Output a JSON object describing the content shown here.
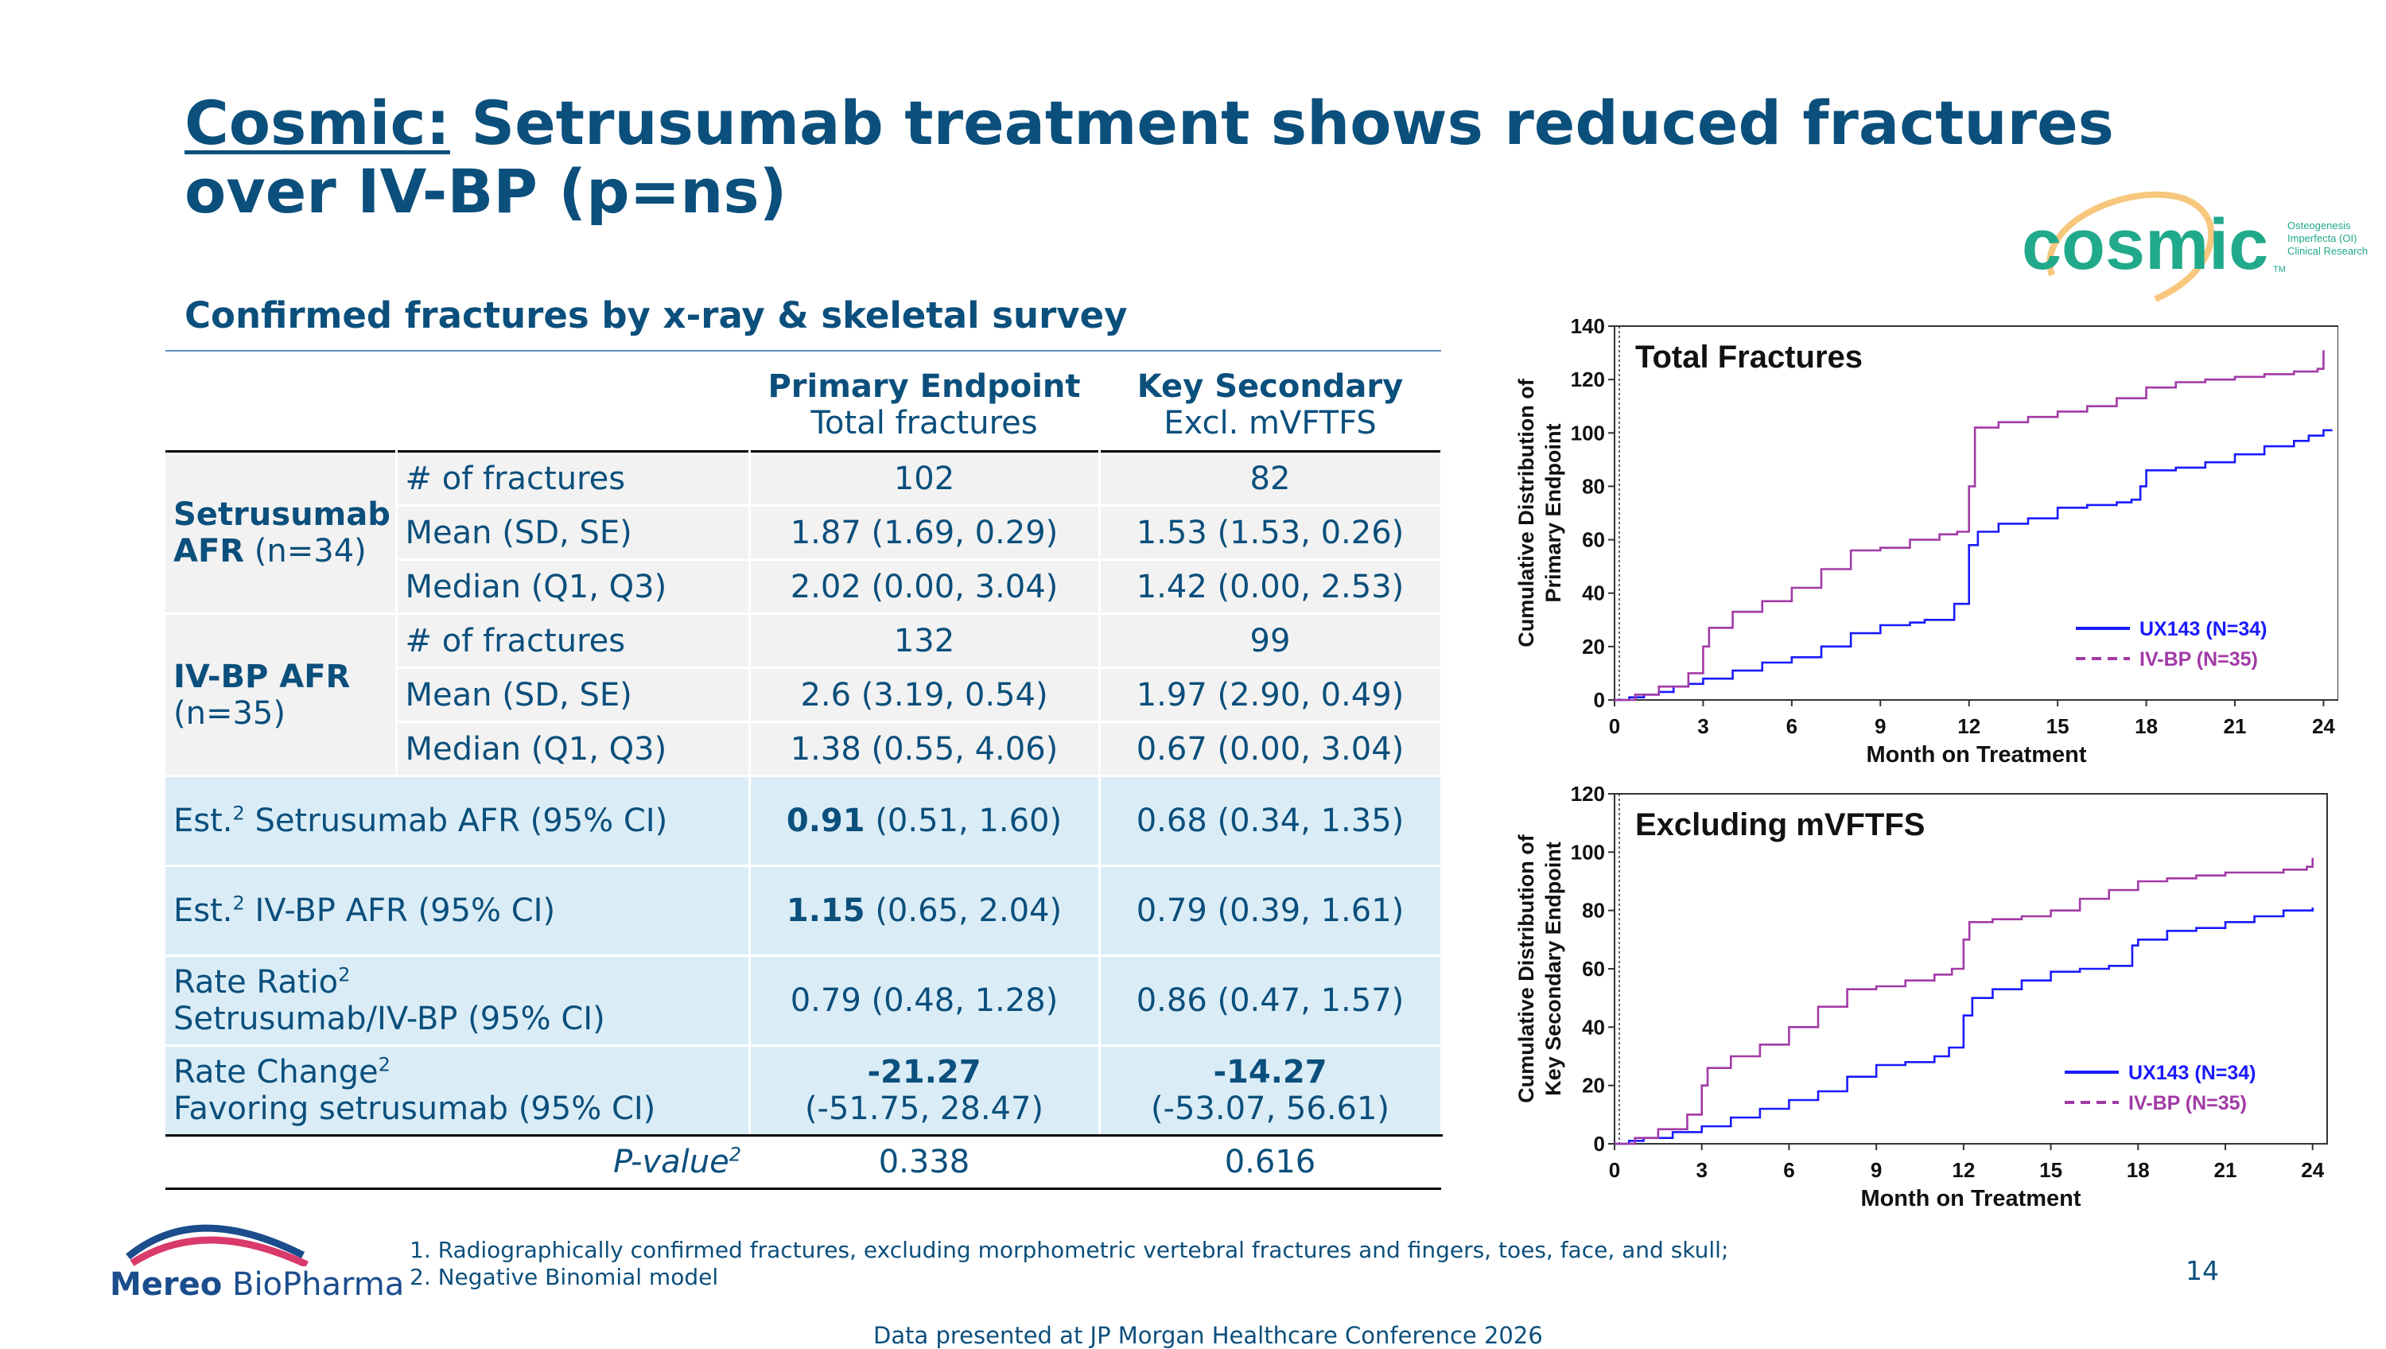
{
  "slide": {
    "title_link": "Cosmic:",
    "title_rest": "Setrusumab treatment shows reduced fractures over IV-BP (p=ns)",
    "subtitle": "Confirmed fractures by x-ray & skeletal survey",
    "page_number": "14",
    "credit": "Data presented at JP Morgan Healthcare Conference 2026",
    "footnote1": "1. Radiographically confirmed fractures, excluding morphometric vertebral fractures and fingers, toes, face, and skull;",
    "footnote2": "2. Negative Binomial model",
    "brand": {
      "primary": "#0b4f7c",
      "grey_row": "#f2f2f2",
      "blue_row": "#daedf7"
    }
  },
  "logos": {
    "mereo_bold": "Mereo",
    "mereo_rest": " BioPharma",
    "cosmic_word": "cosmic",
    "cosmic_tm": "TM",
    "cosmic_line1": "Osteogenesis",
    "cosmic_line2": "Imperfecta (OI)",
    "cosmic_line3": "Clinical Research"
  },
  "table": {
    "col1_title": "Primary Endpoint",
    "col1_sub": "Total fractures",
    "col2_title": "Key Secondary",
    "col2_sub": "Excl. mVFTFS",
    "group1_bold": "Setrusumab",
    "group1_bold2": "AFR",
    "group1_rest": " (n=34)",
    "group2_bold": "IV-BP AFR",
    "group2_rest": "(n=35)",
    "rows_setrusumab": [
      {
        "label": "# of fractures",
        "v1": "102",
        "v2": "82"
      },
      {
        "label": "Mean (SD, SE)",
        "v1": "1.87 (1.69, 0.29)",
        "v2": "1.53 (1.53, 0.26)"
      },
      {
        "label": "Median (Q1, Q3)",
        "v1": "2.02 (0.00, 3.04)",
        "v2": "1.42 (0.00, 2.53)"
      }
    ],
    "rows_ivbp": [
      {
        "label": "# of fractures",
        "v1": "132",
        "v2": "99"
      },
      {
        "label": "Mean (SD, SE)",
        "v1": "2.6 (3.19, 0.54)",
        "v2": "1.97 (2.90, 0.49)"
      },
      {
        "label": "Median (Q1, Q3)",
        "v1": "1.38 (0.55, 4.06)",
        "v2": "0.67 (0.00, 3.04)"
      }
    ],
    "est_set_pre": "Est.",
    "est_set_sup": "2",
    "est_set_post": " Setrusumab AFR (95% CI)",
    "est_set_v1_bold": "0.91",
    "est_set_v1_rest": " (0.51, 1.60)",
    "est_set_v2": "0.68 (0.34, 1.35)",
    "est_iv_pre": "Est.",
    "est_iv_sup": "2",
    "est_iv_post": " IV-BP AFR (95% CI)",
    "est_iv_v1_bold": "1.15",
    "est_iv_v1_rest": " (0.65, 2.04)",
    "est_iv_v2": "0.79 (0.39, 1.61)",
    "rr_label1": "Rate Ratio",
    "rr_sup": "2",
    "rr_label2": "Setrusumab/IV-BP (95% CI)",
    "rr_v1": "0.79 (0.48, 1.28)",
    "rr_v2": "0.86 (0.47, 1.57)",
    "rc_label1": "Rate Change",
    "rc_sup": "2",
    "rc_label2": "Favoring setrusumab (95% CI)",
    "rc_v1_bold": "-21.27",
    "rc_v1_ci": "(-51.75, 28.47)",
    "rc_v2_bold": "-14.27",
    "rc_v2_ci": "(-53.07, 56.61)",
    "pv_label": "P-value",
    "pv_sup": "2",
    "pv_v1": "0.338",
    "pv_v2": "0.616"
  },
  "chart_data": [
    {
      "type": "line",
      "title": "Total Fractures",
      "xlabel": "Month on Treatment",
      "ylabel_line1": "Cumulative Distribution of",
      "ylabel_line2": "Primary Endpoint",
      "xlim": [
        0,
        24.5
      ],
      "ylim": [
        0,
        140
      ],
      "xticks": [
        0,
        3,
        6,
        9,
        12,
        15,
        18,
        21,
        24
      ],
      "yticks": [
        0,
        20,
        40,
        60,
        80,
        100,
        120,
        140
      ],
      "legend_position": "lower-right",
      "series": [
        {
          "name": "UX143 (N=34)",
          "color": "#1a1aff",
          "dash": "solid",
          "points": [
            [
              0,
              0
            ],
            [
              0.5,
              1
            ],
            [
              1,
              2
            ],
            [
              1.5,
              3
            ],
            [
              2,
              5
            ],
            [
              2.5,
              6
            ],
            [
              3,
              8
            ],
            [
              4,
              11
            ],
            [
              5,
              14
            ],
            [
              6,
              16
            ],
            [
              7,
              20
            ],
            [
              8,
              25
            ],
            [
              9,
              28
            ],
            [
              10,
              29
            ],
            [
              10.5,
              30
            ],
            [
              11,
              30
            ],
            [
              11.5,
              36
            ],
            [
              12,
              58
            ],
            [
              12.3,
              63
            ],
            [
              13,
              66
            ],
            [
              14,
              68
            ],
            [
              15,
              72
            ],
            [
              16,
              73
            ],
            [
              17,
              74
            ],
            [
              17.5,
              75
            ],
            [
              17.8,
              80
            ],
            [
              18,
              86
            ],
            [
              19,
              87
            ],
            [
              20,
              89
            ],
            [
              21,
              92
            ],
            [
              22,
              95
            ],
            [
              23,
              97
            ],
            [
              23.5,
              99
            ],
            [
              24,
              101
            ],
            [
              24.3,
              101
            ]
          ]
        },
        {
          "name": "IV-BP (N=35)",
          "color": "#a23aa6",
          "dash": "dashed",
          "points": [
            [
              0,
              0
            ],
            [
              0.7,
              2
            ],
            [
              1.5,
              5
            ],
            [
              2.5,
              10
            ],
            [
              3,
              20
            ],
            [
              3.2,
              27
            ],
            [
              4,
              33
            ],
            [
              5,
              37
            ],
            [
              6,
              42
            ],
            [
              7,
              49
            ],
            [
              8,
              56
            ],
            [
              9,
              57
            ],
            [
              10,
              60
            ],
            [
              11,
              62
            ],
            [
              11.6,
              63
            ],
            [
              12,
              80
            ],
            [
              12.2,
              102
            ],
            [
              13,
              104
            ],
            [
              14,
              106
            ],
            [
              15,
              108
            ],
            [
              16,
              110
            ],
            [
              17,
              113
            ],
            [
              18,
              117
            ],
            [
              19,
              119
            ],
            [
              20,
              120
            ],
            [
              21,
              121
            ],
            [
              22,
              122
            ],
            [
              23,
              123
            ],
            [
              23.8,
              124
            ],
            [
              24,
              131
            ]
          ]
        }
      ]
    },
    {
      "type": "line",
      "title": "Excluding mVFTFS",
      "xlabel": "Month on Treatment",
      "ylabel_line1": "Cumulative Distribution of",
      "ylabel_line2": "Key Secondary Endpoint",
      "xlim": [
        0,
        24.5
      ],
      "ylim": [
        0,
        120
      ],
      "xticks": [
        0,
        3,
        6,
        9,
        12,
        15,
        18,
        21,
        24
      ],
      "yticks": [
        0,
        20,
        40,
        60,
        80,
        100,
        120
      ],
      "legend_position": "lower-right",
      "series": [
        {
          "name": "UX143 (N=34)",
          "color": "#1a1aff",
          "dash": "solid",
          "points": [
            [
              0,
              0
            ],
            [
              0.5,
              1
            ],
            [
              1,
              2
            ],
            [
              2,
              4
            ],
            [
              3,
              6
            ],
            [
              4,
              9
            ],
            [
              5,
              12
            ],
            [
              6,
              15
            ],
            [
              7,
              18
            ],
            [
              8,
              23
            ],
            [
              9,
              27
            ],
            [
              10,
              28
            ],
            [
              11,
              30
            ],
            [
              11.5,
              33
            ],
            [
              12,
              44
            ],
            [
              12.3,
              50
            ],
            [
              13,
              53
            ],
            [
              14,
              56
            ],
            [
              15,
              59
            ],
            [
              16,
              60
            ],
            [
              17,
              61
            ],
            [
              17.8,
              68
            ],
            [
              18,
              70
            ],
            [
              19,
              73
            ],
            [
              20,
              74
            ],
            [
              21,
              76
            ],
            [
              22,
              78
            ],
            [
              23,
              80
            ],
            [
              24,
              81
            ]
          ]
        },
        {
          "name": "IV-BP (N=35)",
          "color": "#a23aa6",
          "dash": "dashed",
          "points": [
            [
              0,
              0
            ],
            [
              0.7,
              2
            ],
            [
              1.5,
              5
            ],
            [
              2.5,
              10
            ],
            [
              3,
              20
            ],
            [
              3.2,
              26
            ],
            [
              4,
              30
            ],
            [
              5,
              34
            ],
            [
              6,
              40
            ],
            [
              7,
              47
            ],
            [
              8,
              53
            ],
            [
              9,
              54
            ],
            [
              10,
              56
            ],
            [
              11,
              58
            ],
            [
              11.6,
              60
            ],
            [
              12,
              70
            ],
            [
              12.2,
              76
            ],
            [
              13,
              77
            ],
            [
              14,
              78
            ],
            [
              15,
              80
            ],
            [
              16,
              84
            ],
            [
              17,
              87
            ],
            [
              18,
              90
            ],
            [
              19,
              91
            ],
            [
              20,
              92
            ],
            [
              21,
              93
            ],
            [
              22,
              93
            ],
            [
              23,
              94
            ],
            [
              23.8,
              95
            ],
            [
              24,
              98
            ]
          ]
        }
      ]
    }
  ]
}
